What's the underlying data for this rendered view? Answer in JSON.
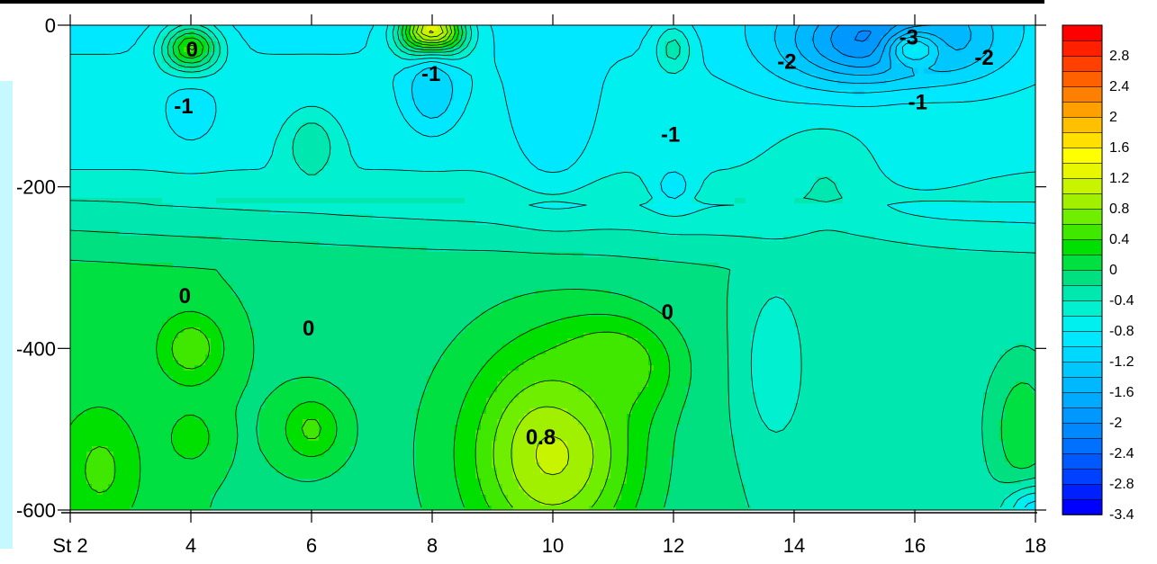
{
  "chart_data": {
    "type": "heatmap",
    "title": "",
    "xlabel": "",
    "ylabel": "",
    "x_ticks": [
      {
        "value": 2,
        "label": "St 2"
      },
      {
        "value": 4,
        "label": "4"
      },
      {
        "value": 6,
        "label": "6"
      },
      {
        "value": 8,
        "label": "8"
      },
      {
        "value": 10,
        "label": "10"
      },
      {
        "value": 12,
        "label": "12"
      },
      {
        "value": 14,
        "label": "14"
      },
      {
        "value": 16,
        "label": "16"
      },
      {
        "value": 18,
        "label": "18"
      }
    ],
    "y_ticks": [
      {
        "value": 0,
        "label": "0"
      },
      {
        "value": -200,
        "label": "-200"
      },
      {
        "value": -400,
        "label": "-400"
      },
      {
        "value": -600,
        "label": "-600"
      }
    ],
    "xlim": [
      2,
      18
    ],
    "ylim": [
      -600,
      0
    ],
    "color_scale": {
      "levels": [
        -3.4,
        -3.2,
        -3.0,
        -2.8,
        -2.6,
        -2.4,
        -2.2,
        -2.0,
        -1.8,
        -1.6,
        -1.4,
        -1.2,
        -1.0,
        -0.8,
        -0.6,
        -0.4,
        -0.2,
        0.0,
        0.2,
        0.4,
        0.6,
        0.8,
        1.0,
        1.2,
        1.4,
        1.6,
        1.8,
        2.0,
        2.2,
        2.4,
        2.6,
        2.8,
        3.0
      ],
      "colors": [
        "#0000ff",
        "#0020ff",
        "#0040ff",
        "#0058ff",
        "#0070ff",
        "#0088ff",
        "#0098ff",
        "#00aaff",
        "#00b8ff",
        "#00c8ff",
        "#00d8ff",
        "#00e8ff",
        "#00f0f0",
        "#00f0d0",
        "#00e8b0",
        "#00e080",
        "#00e040",
        "#00e000",
        "#40e800",
        "#70ee00",
        "#a0f000",
        "#c8f400",
        "#e8f600",
        "#ffff00",
        "#ffe000",
        "#ffc000",
        "#ffa000",
        "#ff8000",
        "#ff6000",
        "#ff4000",
        "#ff2000",
        "#ff0000"
      ],
      "tick_labels": [
        "2.8",
        "2.4",
        "2",
        "1.6",
        "1.2",
        "0.8",
        "0.4",
        "0",
        "-0.4",
        "-0.8",
        "-1.2",
        "-1.6",
        "-2",
        "-2.4",
        "-2.8",
        "-3.4"
      ]
    },
    "features": [
      {
        "x": 4,
        "y": -30,
        "v": 0.3,
        "s": 0.45,
        "sy": 30
      },
      {
        "x": 4,
        "y": -110,
        "v": -1.1,
        "s": 0.5,
        "sy": 45
      },
      {
        "x": 6,
        "y": -150,
        "v": -0.4,
        "s": 0.4,
        "sy": 40
      },
      {
        "x": 8,
        "y": -10,
        "v": 1.4,
        "s": 0.5,
        "sy": 30
      },
      {
        "x": 8,
        "y": -80,
        "v": -1.4,
        "s": 0.45,
        "sy": 50
      },
      {
        "x": 10,
        "y": -110,
        "v": -1.2,
        "s": 0.7,
        "sy": 90
      },
      {
        "x": 12,
        "y": -30,
        "v": -0.5,
        "s": 0.3,
        "sy": 30
      },
      {
        "x": 12,
        "y": -200,
        "v": -1.1,
        "s": 0.4,
        "sy": 30
      },
      {
        "x": 15.5,
        "y": -20,
        "v": -2.4,
        "s": 1.6,
        "sy": 60
      },
      {
        "x": 16,
        "y": -30,
        "v": -1.0,
        "s": 0.5,
        "sy": 25
      },
      {
        "x": 16,
        "y": -150,
        "v": -0.9,
        "s": 1.4,
        "sy": 80
      },
      {
        "x": 14.5,
        "y": -200,
        "v": -0.6,
        "s": 0.8,
        "sy": 70
      },
      {
        "x": 4,
        "y": -400,
        "v": 0.35,
        "s": 0.55,
        "sy": 45
      },
      {
        "x": 6,
        "y": -500,
        "v": 0.25,
        "s": 0.5,
        "sy": 40
      },
      {
        "x": 4,
        "y": -510,
        "v": 0.15,
        "s": 0.4,
        "sy": 35
      },
      {
        "x": 10,
        "y": -530,
        "v": 0.85,
        "s": 1.4,
        "sy": 130
      },
      {
        "x": 11,
        "y": -420,
        "v": 0.4,
        "s": 1.0,
        "sy": 60
      },
      {
        "x": 15,
        "y": -410,
        "v": -0.4,
        "s": 1.4,
        "sy": 120
      },
      {
        "x": 13.7,
        "y": -420,
        "v": -0.8,
        "s": 0.5,
        "sy": 100
      },
      {
        "x": 17.8,
        "y": -500,
        "v": 0.0,
        "s": 0.5,
        "sy": 80
      },
      {
        "x": 18,
        "y": -600,
        "v": -1.1,
        "s": 0.5,
        "sy": 30
      },
      {
        "x": 2.5,
        "y": -550,
        "v": 0.25,
        "s": 0.7,
        "sy": 80
      }
    ],
    "contour_labels": [
      {
        "text": "0",
        "x": 4.02,
        "y": -30
      },
      {
        "text": "-1",
        "x": 3.88,
        "y": -100
      },
      {
        "text": "-1",
        "x": 7.98,
        "y": -60
      },
      {
        "text": "-2",
        "x": 13.88,
        "y": -45
      },
      {
        "text": "-3",
        "x": 15.9,
        "y": -15
      },
      {
        "text": "-2",
        "x": 17.15,
        "y": -40
      },
      {
        "text": "-1",
        "x": 16.05,
        "y": -95
      },
      {
        "text": "-1",
        "x": 11.95,
        "y": -135
      },
      {
        "text": "0",
        "x": 3.9,
        "y": -335
      },
      {
        "text": "0",
        "x": 5.95,
        "y": -375
      },
      {
        "text": "0",
        "x": 11.9,
        "y": -355
      },
      {
        "text": "0.8",
        "x": 9.8,
        "y": -510
      }
    ],
    "grid": false,
    "legend": "right"
  }
}
